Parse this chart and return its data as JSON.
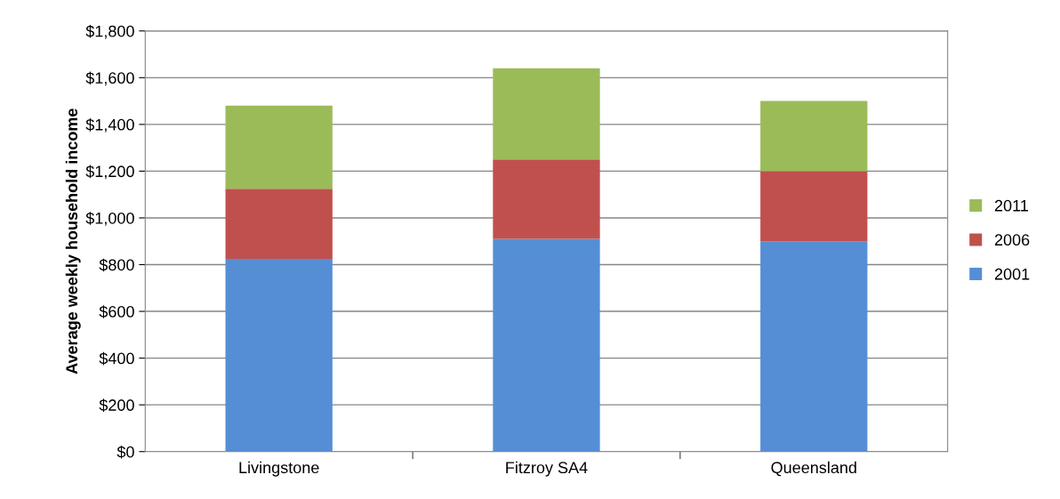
{
  "chart_data": {
    "type": "bar",
    "stacked": true,
    "ylabel": "Average weekly household income",
    "categories": [
      "Livingstone",
      "Fitzroy SA4",
      "Queensland"
    ],
    "series": [
      {
        "name": "2001",
        "color": "#558ed5",
        "values": [
          825,
          910,
          900
        ]
      },
      {
        "name": "2006",
        "color": "#c0504d",
        "values": [
          300,
          340,
          300
        ]
      },
      {
        "name": "2011",
        "color": "#9bbb59",
        "values": [
          355,
          390,
          300
        ]
      }
    ],
    "ylim": [
      0,
      1800
    ],
    "yticks": [
      {
        "value": 0,
        "label": "$0"
      },
      {
        "value": 200,
        "label": "$200"
      },
      {
        "value": 400,
        "label": "$400"
      },
      {
        "value": 600,
        "label": "$600"
      },
      {
        "value": 800,
        "label": "$800"
      },
      {
        "value": 1000,
        "label": "$1,000"
      },
      {
        "value": 1200,
        "label": "$1,200"
      },
      {
        "value": 1400,
        "label": "$1,400"
      },
      {
        "value": 1600,
        "label": "$1,600"
      },
      {
        "value": 1800,
        "label": "$1,800"
      }
    ],
    "grid": "y",
    "legend": "right"
  }
}
